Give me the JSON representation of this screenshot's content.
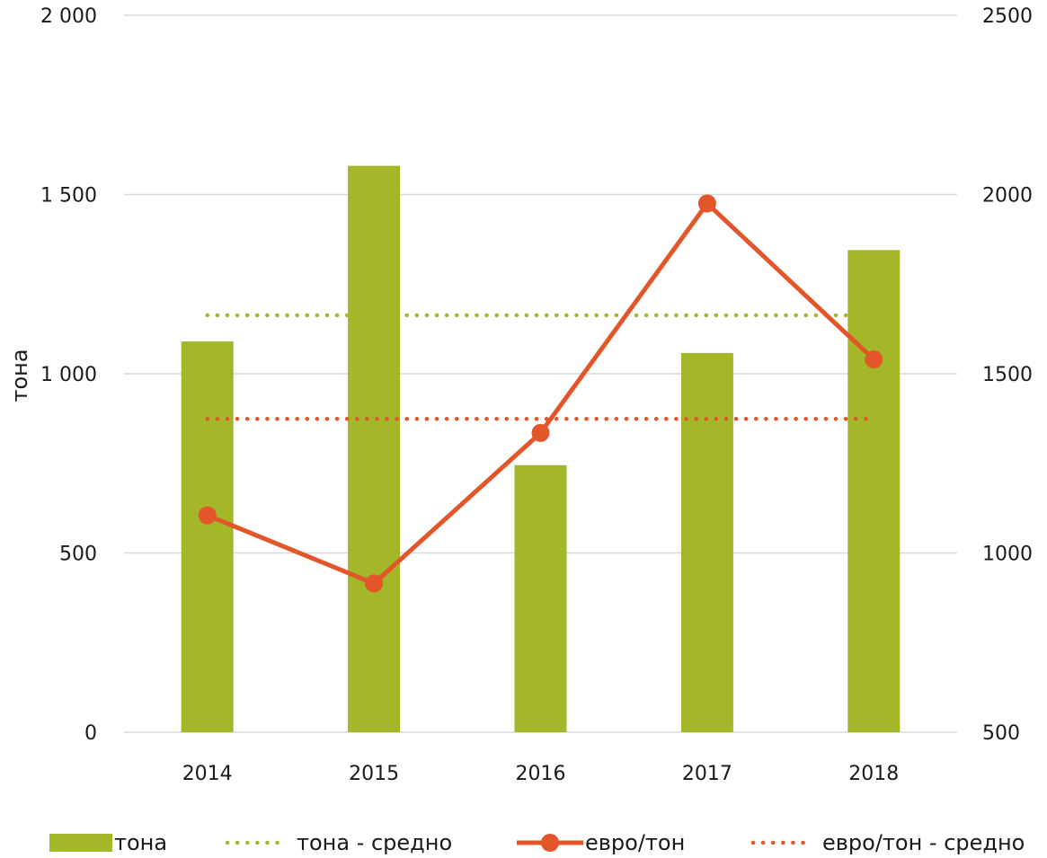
{
  "chart_data": {
    "type": "bar",
    "categories": [
      "2014",
      "2015",
      "2016",
      "2017",
      "2018"
    ],
    "series": [
      {
        "name": "тона",
        "type": "bar",
        "axis": "left",
        "color": "#a4b729",
        "values": [
          1090,
          1580,
          745,
          1058,
          1345
        ]
      },
      {
        "name": "тона - средно",
        "type": "line",
        "style": "dotted",
        "axis": "left",
        "color": "#a4b729",
        "values": [
          1163,
          1163,
          1163,
          1163,
          1163
        ]
      },
      {
        "name": "евро/тон",
        "type": "line",
        "style": "solid",
        "markers": true,
        "axis": "right",
        "color": "#e2562a",
        "values": [
          1105,
          915,
          1335,
          1975,
          1540
        ]
      },
      {
        "name": "евро/тон - средно",
        "type": "line",
        "style": "dotted",
        "axis": "right",
        "color": "#e2562a",
        "values": [
          1374,
          1374,
          1374,
          1374,
          1374
        ]
      }
    ],
    "ylabel": "тона",
    "ylim": [
      0,
      2000
    ],
    "y_ticks": [
      "0",
      "500",
      "1 000",
      "1 500",
      "2 000"
    ],
    "y2lim": [
      500,
      2500
    ],
    "y2_ticks": [
      "500",
      "1000",
      "1500",
      "2000",
      "2500"
    ],
    "grid": true,
    "legend": "bottom"
  }
}
